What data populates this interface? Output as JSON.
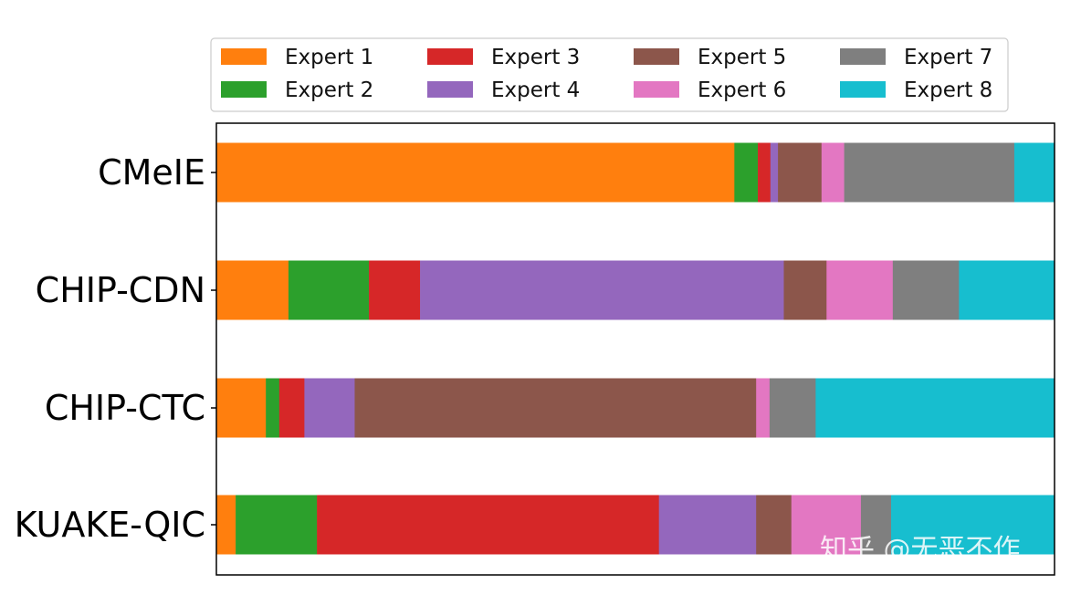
{
  "chart_data": {
    "type": "bar",
    "orientation": "horizontal",
    "stacked": true,
    "normalized": true,
    "categories": [
      "CMeIE",
      "CHIP-CDN",
      "CHIP-CTC",
      "KUAKE-QIC"
    ],
    "xlim": [
      0,
      1
    ],
    "grid": false,
    "legend_position": "top",
    "series": [
      {
        "name": "Expert 1",
        "color": "#ff7f0e",
        "values": [
          0.618,
          0.086,
          0.059,
          0.023
        ]
      },
      {
        "name": "Expert 2",
        "color": "#2ca02c",
        "values": [
          0.028,
          0.096,
          0.016,
          0.097
        ]
      },
      {
        "name": "Expert 3",
        "color": "#d62728",
        "values": [
          0.015,
          0.061,
          0.03,
          0.408
        ]
      },
      {
        "name": "Expert 4",
        "color": "#9467bd",
        "values": [
          0.009,
          0.434,
          0.06,
          0.116
        ]
      },
      {
        "name": "Expert 5",
        "color": "#8c564b",
        "values": [
          0.052,
          0.051,
          0.479,
          0.042
        ]
      },
      {
        "name": "Expert 6",
        "color": "#e377c2",
        "values": [
          0.027,
          0.079,
          0.016,
          0.083
        ]
      },
      {
        "name": "Expert 7",
        "color": "#7f7f7f",
        "values": [
          0.203,
          0.079,
          0.055,
          0.036
        ]
      },
      {
        "name": "Expert 8",
        "color": "#17becf",
        "values": [
          0.048,
          0.114,
          0.285,
          0.195
        ]
      }
    ]
  },
  "watermark": "知乎 @无恶不作"
}
